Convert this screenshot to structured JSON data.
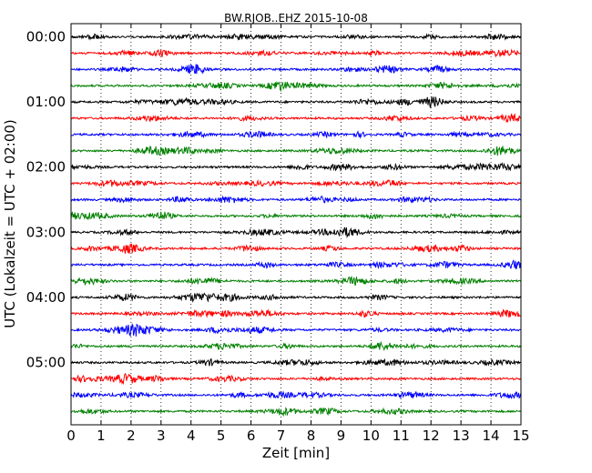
{
  "chart_data": {
    "type": "line",
    "title": "BW.RJOB..EHZ 2015-10-08",
    "xlabel": "Zeit  [min]",
    "ylabel": "UTC (Lokalzeit = UTC + 02:00)",
    "xlim": [
      0,
      15
    ],
    "x_ticks": [
      "0",
      "1",
      "2",
      "3",
      "4",
      "5",
      "6",
      "7",
      "8",
      "9",
      "10",
      "11",
      "12",
      "13",
      "14",
      "15"
    ],
    "y_tick_labels": [
      "00:00",
      "01:00",
      "02:00",
      "03:00",
      "04:00",
      "05:00"
    ],
    "grid": "vertical-dotted",
    "rows_per_hour": 4,
    "row_minutes": 15,
    "row_colors": [
      "#000000",
      "#ff0000",
      "#0000ff",
      "#008000"
    ],
    "rows": [
      {
        "start": "00:00",
        "color": "#000000"
      },
      {
        "start": "00:15",
        "color": "#ff0000"
      },
      {
        "start": "00:30",
        "color": "#0000ff"
      },
      {
        "start": "00:45",
        "color": "#008000"
      },
      {
        "start": "01:00",
        "color": "#000000"
      },
      {
        "start": "01:15",
        "color": "#ff0000"
      },
      {
        "start": "01:30",
        "color": "#0000ff"
      },
      {
        "start": "01:45",
        "color": "#008000"
      },
      {
        "start": "02:00",
        "color": "#000000"
      },
      {
        "start": "02:15",
        "color": "#ff0000"
      },
      {
        "start": "02:30",
        "color": "#0000ff"
      },
      {
        "start": "02:45",
        "color": "#008000"
      },
      {
        "start": "03:00",
        "color": "#000000"
      },
      {
        "start": "03:15",
        "color": "#ff0000"
      },
      {
        "start": "03:30",
        "color": "#0000ff"
      },
      {
        "start": "03:45",
        "color": "#008000"
      },
      {
        "start": "04:00",
        "color": "#000000"
      },
      {
        "start": "04:15",
        "color": "#ff0000"
      },
      {
        "start": "04:30",
        "color": "#0000ff"
      },
      {
        "start": "04:45",
        "color": "#008000"
      },
      {
        "start": "05:00",
        "color": "#000000"
      },
      {
        "start": "05:15",
        "color": "#ff0000"
      },
      {
        "start": "05:30",
        "color": "#0000ff"
      },
      {
        "start": "05:45",
        "color": "#008000"
      }
    ]
  }
}
